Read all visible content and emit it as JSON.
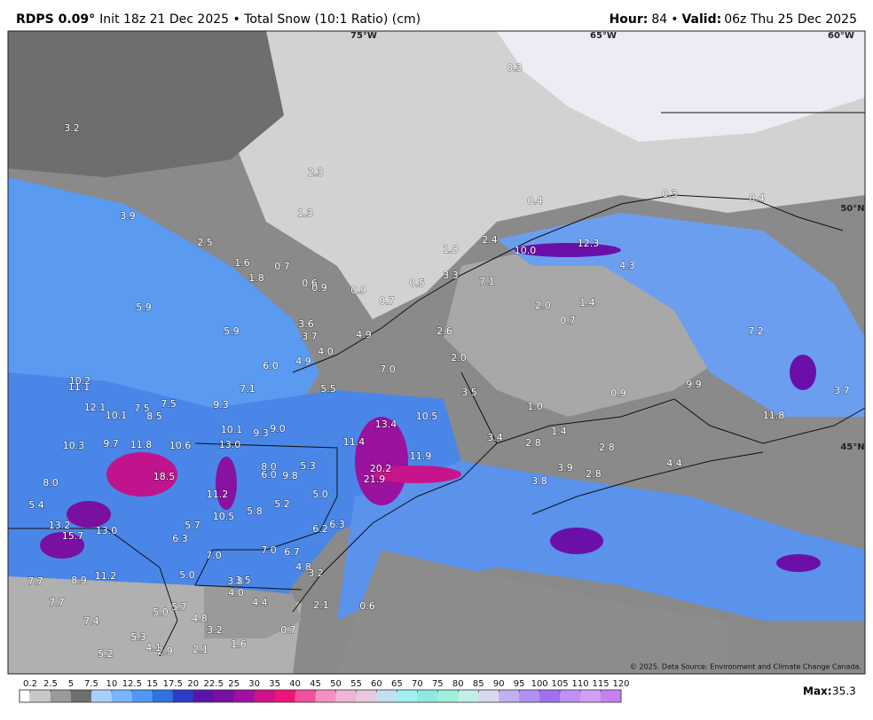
{
  "header": {
    "model": "RDPS 0.09°",
    "init": "Init 18z 21 Dec 2025 • Total Snow (10:1 Ratio) (cm)",
    "hour_label": "Hour:",
    "hour": "84",
    "sep": "•",
    "valid_label": "Valid:",
    "valid": "06z Thu 25 Dec 2025"
  },
  "grid_labels": [
    "75°W",
    "65°W",
    "60°W",
    "50°N",
    "45°N"
  ],
  "map_labels": [
    "3.2",
    "2.3",
    "1.3",
    "3.9",
    "2.5",
    "1.6",
    "0.7",
    "1.8",
    "0.6",
    "0.9",
    "0.9",
    "0.7",
    "0.5",
    "3.3",
    "1.8",
    "2.4",
    "7.1",
    "10.0",
    "12.3",
    "4.3",
    "0.3",
    "0.3",
    "0.4",
    "0.4",
    "5.9",
    "5.9",
    "3.6",
    "3.7",
    "4.9",
    "4.0",
    "4.9",
    "6.0",
    "2.6",
    "2.0",
    "7.0",
    "5.5",
    "7.1",
    "3.5",
    "1.0",
    "0.9",
    "10.2",
    "11.1",
    "12.1",
    "10.1",
    "7.5",
    "8.5",
    "7.5",
    "9.3",
    "10.1",
    "9.3",
    "9.0",
    "13.4",
    "10.5",
    "10.3",
    "9.7",
    "11.8",
    "10.6",
    "13.0",
    "11.4",
    "11.9",
    "20.2",
    "21.9",
    "18.5",
    "8.0",
    "6.0",
    "9.8",
    "5.3",
    "5.0",
    "3.4",
    "2.8",
    "1.4",
    "2.8",
    "3.9",
    "2.8",
    "3.8",
    "4.4",
    "8.0",
    "5.4",
    "13.2",
    "15.7",
    "13.0",
    "11.2",
    "10.5",
    "5.8",
    "5.2",
    "5.7",
    "6.3",
    "7.0",
    "7.0",
    "6.7",
    "6.2",
    "6.3",
    "4.8",
    "3.2",
    "5.0",
    "11.2",
    "7.7",
    "8.9",
    "3.8",
    "3.5",
    "4.0",
    "4.4",
    "7.7",
    "7.4",
    "5.0",
    "5.7",
    "4.8",
    "3.2",
    "1.6",
    "5.3",
    "4.1",
    "2.9",
    "2.1",
    "5.2",
    "0.7",
    "2.1",
    "0.6",
    "7.2",
    "9.9",
    "11.8",
    "3.7",
    "2.0",
    "1.4",
    "0.7"
  ],
  "copyright": "© 2025. Data Source: Environment and Climate Change Canada.",
  "colorbar": {
    "ticks": [
      0.2,
      2.5,
      5,
      7.5,
      10,
      12.5,
      15,
      17.5,
      20,
      22.5,
      25,
      30,
      35,
      40,
      45,
      50,
      55,
      60,
      65,
      70,
      75,
      80,
      85,
      90,
      95,
      100,
      105,
      110,
      115,
      120
    ],
    "colors": [
      "#c8c8c8",
      "#9a9a9a",
      "#6e6e6e",
      "#a8d0ff",
      "#7ab4ff",
      "#5096f5",
      "#2f72e0",
      "#2a3fc8",
      "#5a14a8",
      "#7a10a0",
      "#a010a0",
      "#d0108c",
      "#f01478",
      "#f050a0",
      "#f490c0",
      "#f0b4d4",
      "#e8c8e0",
      "#c0e0f0",
      "#a0f0f0",
      "#90e8e0",
      "#a0f0d8",
      "#c0f0e8",
      "#d8d8f0",
      "#c0b0f0",
      "#b090f0",
      "#a070f0",
      "#c090f8",
      "#d0a0f8",
      "#c880f0"
    ]
  },
  "max_label": "Max:",
  "max_value": "35.3"
}
